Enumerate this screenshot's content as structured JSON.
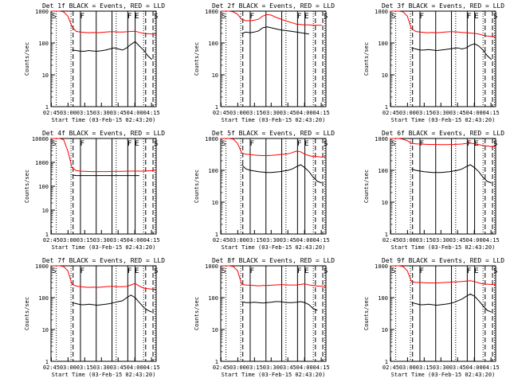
{
  "chart_data": [
    {
      "type": "line",
      "title": "Det 1f BLACK = Events, RED = LLD",
      "xlabel": "Start Time (03-Feb-15 02:43:20)",
      "ylabel": "Counts/sec",
      "yscale": "log",
      "ylim": [
        1,
        1000
      ],
      "xlim": [
        0,
        100
      ],
      "xticks": [
        "02:45",
        "03:00",
        "03:15",
        "03:30",
        "03:45",
        "04:00",
        "04:15"
      ],
      "yticks": [
        "1",
        "10",
        "100",
        "1000"
      ],
      "region_labels": [
        "S",
        "F",
        "F",
        "E",
        "S"
      ],
      "series": [
        {
          "color": "#ff0000",
          "values": [
            1000,
            1000,
            1000,
            950,
            700,
            320,
            230,
            220,
            215,
            210,
            215,
            210,
            215,
            220,
            225,
            225,
            220,
            220,
            225,
            230,
            235,
            215,
            200,
            195,
            190,
            190
          ]
        },
        {
          "color": "#000000",
          "values": [
            null,
            null,
            null,
            null,
            null,
            60,
            58,
            55,
            55,
            58,
            56,
            55,
            57,
            60,
            65,
            70,
            65,
            60,
            70,
            90,
            110,
            80,
            60,
            40,
            30,
            null
          ]
        }
      ]
    },
    {
      "type": "line",
      "title": "Det 2f BLACK = Events, RED = LLD",
      "xlabel": "Start Time (03-Feb-15 02:43:20)",
      "ylabel": "Counts/sec",
      "yscale": "log",
      "ylim": [
        1,
        1000
      ],
      "xlim": [
        0,
        100
      ],
      "xticks": [
        "02:45",
        "03:00",
        "03:15",
        "03:30",
        "03:45",
        "04:00",
        "04:15"
      ],
      "yticks": [
        "1",
        "10",
        "100",
        "1000"
      ],
      "region_labels": [
        "S",
        "F",
        "F",
        "E",
        "S"
      ],
      "series": [
        {
          "color": "#ff0000",
          "values": [
            1000,
            1000,
            1000,
            950,
            800,
            550,
            500,
            500,
            520,
            560,
            700,
            780,
            750,
            650,
            580,
            520,
            470,
            430,
            390,
            380,
            370,
            370,
            360,
            360,
            360,
            null
          ]
        },
        {
          "color": "#000000",
          "values": [
            null,
            null,
            null,
            null,
            null,
            200,
            220,
            210,
            220,
            240,
            300,
            320,
            300,
            280,
            260,
            250,
            240,
            230,
            220,
            210,
            200,
            190,
            null,
            null,
            null,
            null
          ]
        }
      ]
    },
    {
      "type": "line",
      "title": "Det 3f BLACK = Events, RED = LLD",
      "xlabel": "Start Time (03-Feb-15 02:43:20)",
      "ylabel": "Counts/sec",
      "yscale": "log",
      "ylim": [
        1,
        1000
      ],
      "xlim": [
        0,
        100
      ],
      "xticks": [
        "02:45",
        "03:00",
        "03:15",
        "03:30",
        "03:45",
        "04:00",
        "04:15"
      ],
      "yticks": [
        "1",
        "10",
        "100",
        "1000"
      ],
      "region_labels": [
        "S",
        "F",
        "F",
        "E",
        "S"
      ],
      "series": [
        {
          "color": "#ff0000",
          "values": [
            1000,
            1000,
            1000,
            950,
            700,
            280,
            230,
            220,
            215,
            210,
            215,
            210,
            215,
            220,
            225,
            225,
            220,
            215,
            210,
            205,
            200,
            190,
            175,
            165,
            160,
            155
          ]
        },
        {
          "color": "#000000",
          "values": [
            null,
            null,
            null,
            null,
            null,
            70,
            65,
            60,
            60,
            62,
            60,
            58,
            60,
            62,
            65,
            68,
            70,
            65,
            70,
            85,
            95,
            80,
            60,
            40,
            30,
            null
          ]
        }
      ]
    },
    {
      "type": "line",
      "title": "Det 4f BLACK = Events, RED = LLD",
      "xlabel": "Start Time (03-Feb-15 02:43:20)",
      "ylabel": "Counts/sec",
      "yscale": "log",
      "ylim": [
        1,
        10000
      ],
      "xlim": [
        0,
        100
      ],
      "xticks": [
        "02:45",
        "03:00",
        "03:15",
        "03:30",
        "03:45",
        "04:00",
        "04:15"
      ],
      "yticks": [
        "1",
        "10",
        "100",
        "1000",
        "10000"
      ],
      "region_labels": [
        "S",
        "F",
        "F",
        "E",
        "S"
      ],
      "series": [
        {
          "color": "#ff0000",
          "values": [
            10000,
            10000,
            10000,
            9000,
            3000,
            600,
            450,
            430,
            420,
            415,
            410,
            410,
            410,
            410,
            415,
            420,
            420,
            420,
            425,
            430,
            430,
            430,
            430,
            440,
            450,
            480
          ]
        },
        {
          "color": "#000000",
          "values": [
            null,
            null,
            null,
            null,
            null,
            300,
            280,
            280,
            280,
            280,
            280,
            280,
            280,
            280,
            280,
            280,
            280,
            280,
            280,
            280,
            280,
            280,
            null,
            null,
            null,
            null
          ]
        }
      ]
    },
    {
      "type": "line",
      "title": "Det 5f BLACK = Events, RED = LLD",
      "xlabel": "Start Time (03-Feb-15 02:43:20)",
      "ylabel": "Counts/sec",
      "yscale": "log",
      "ylim": [
        1,
        1000
      ],
      "xlim": [
        0,
        100
      ],
      "xticks": [
        "02:45",
        "03:00",
        "03:15",
        "03:30",
        "03:45",
        "04:00",
        "04:15"
      ],
      "yticks": [
        "1",
        "10",
        "100",
        "1000"
      ],
      "region_labels": [
        "S",
        "F",
        "F",
        "E",
        "S"
      ],
      "series": [
        {
          "color": "#ff0000",
          "values": [
            1000,
            1000,
            1000,
            950,
            700,
            350,
            320,
            310,
            300,
            295,
            290,
            290,
            295,
            300,
            310,
            320,
            330,
            360,
            400,
            380,
            320,
            290,
            270,
            270,
            260,
            270
          ]
        },
        {
          "color": "#000000",
          "values": [
            null,
            null,
            null,
            null,
            null,
            150,
            110,
            100,
            95,
            90,
            88,
            85,
            85,
            88,
            90,
            95,
            100,
            110,
            130,
            150,
            120,
            90,
            60,
            45,
            40,
            null
          ]
        }
      ]
    },
    {
      "type": "line",
      "title": "Det 6f BLACK = Events, RED = LLD",
      "xlabel": "Start Time (03-Feb-15 02:43:20)",
      "ylabel": "Counts/sec",
      "yscale": "log",
      "ylim": [
        1,
        1000
      ],
      "xlim": [
        0,
        100
      ],
      "xticks": [
        "02:45",
        "03:00",
        "03:15",
        "03:30",
        "03:45",
        "04:00",
        "04:15"
      ],
      "yticks": [
        "1",
        "10",
        "100",
        "1000"
      ],
      "region_labels": [
        "S",
        "F",
        "F",
        "E",
        "S"
      ],
      "series": [
        {
          "color": "#ff0000",
          "values": [
            1000,
            1000,
            1000,
            950,
            850,
            700,
            680,
            670,
            660,
            650,
            650,
            645,
            640,
            640,
            645,
            650,
            660,
            670,
            700,
            720,
            680,
            640,
            600,
            580,
            560,
            550
          ]
        },
        {
          "color": "#000000",
          "values": [
            null,
            null,
            null,
            null,
            null,
            110,
            100,
            95,
            90,
            88,
            85,
            85,
            85,
            88,
            90,
            95,
            100,
            110,
            130,
            150,
            120,
            90,
            60,
            45,
            40,
            null
          ]
        }
      ]
    },
    {
      "type": "line",
      "title": "Det 7f BLACK = Events, RED = LLD",
      "xlabel": "Start Time (03-Feb-15 02:43:20)",
      "ylabel": "Counts/sec",
      "yscale": "log",
      "ylim": [
        1,
        1000
      ],
      "xlim": [
        0,
        100
      ],
      "xticks": [
        "02:45",
        "03:00",
        "03:15",
        "03:30",
        "03:45",
        "04:00",
        "04:15"
      ],
      "yticks": [
        "1",
        "10",
        "100",
        "1000"
      ],
      "region_labels": [
        "S",
        "F",
        "F",
        "E",
        "S"
      ],
      "series": [
        {
          "color": "#ff0000",
          "values": [
            1000,
            1000,
            1000,
            950,
            700,
            260,
            230,
            220,
            215,
            210,
            215,
            210,
            215,
            220,
            225,
            225,
            220,
            220,
            225,
            250,
            280,
            230,
            200,
            190,
            185,
            180
          ]
        },
        {
          "color": "#000000",
          "values": [
            null,
            null,
            null,
            null,
            null,
            70,
            65,
            60,
            60,
            62,
            60,
            58,
            60,
            62,
            65,
            70,
            75,
            80,
            100,
            120,
            100,
            70,
            50,
            40,
            35,
            null
          ]
        }
      ]
    },
    {
      "type": "line",
      "title": "Det 8f BLACK = Events, RED = LLD",
      "xlabel": "Start Time (03-Feb-15 02:43:20)",
      "ylabel": "Counts/sec",
      "yscale": "log",
      "ylim": [
        1,
        1000
      ],
      "xlim": [
        0,
        100
      ],
      "xticks": [
        "02:45",
        "03:00",
        "03:15",
        "03:30",
        "03:45",
        "04:00",
        "04:15"
      ],
      "yticks": [
        "1",
        "10",
        "100",
        "1000"
      ],
      "region_labels": [
        "S",
        "F",
        "F",
        "E",
        "S"
      ],
      "series": [
        {
          "color": "#ff0000",
          "values": [
            1000,
            1000,
            1000,
            950,
            700,
            260,
            250,
            245,
            240,
            235,
            240,
            240,
            245,
            250,
            255,
            255,
            250,
            250,
            250,
            260,
            270,
            250,
            240,
            230,
            230,
            220
          ]
        },
        {
          "color": "#000000",
          "values": [
            null,
            null,
            null,
            null,
            null,
            75,
            70,
            70,
            72,
            70,
            68,
            70,
            72,
            75,
            75,
            72,
            70,
            70,
            72,
            75,
            70,
            60,
            45,
            40,
            null,
            null
          ]
        }
      ]
    },
    {
      "type": "line",
      "title": "Det 9f BLACK = Events, RED = LLD",
      "xlabel": "Start Time (03-Feb-15 02:43:20)",
      "ylabel": "Counts/sec",
      "yscale": "log",
      "ylim": [
        1,
        1000
      ],
      "xlim": [
        0,
        100
      ],
      "xticks": [
        "02:45",
        "03:00",
        "03:15",
        "03:30",
        "03:45",
        "04:00",
        "04:15"
      ],
      "yticks": [
        "1",
        "10",
        "100",
        "1000"
      ],
      "region_labels": [
        "S",
        "F",
        "F",
        "E",
        "S"
      ],
      "series": [
        {
          "color": "#ff0000",
          "values": [
            1000,
            1000,
            1000,
            950,
            700,
            320,
            300,
            300,
            295,
            290,
            290,
            290,
            295,
            300,
            305,
            310,
            315,
            320,
            330,
            340,
            320,
            290,
            270,
            265,
            260,
            260
          ]
        },
        {
          "color": "#000000",
          "values": [
            null,
            null,
            null,
            null,
            null,
            70,
            65,
            60,
            60,
            62,
            60,
            58,
            60,
            62,
            65,
            70,
            80,
            90,
            110,
            130,
            110,
            80,
            55,
            40,
            35,
            null
          ]
        }
      ]
    }
  ]
}
